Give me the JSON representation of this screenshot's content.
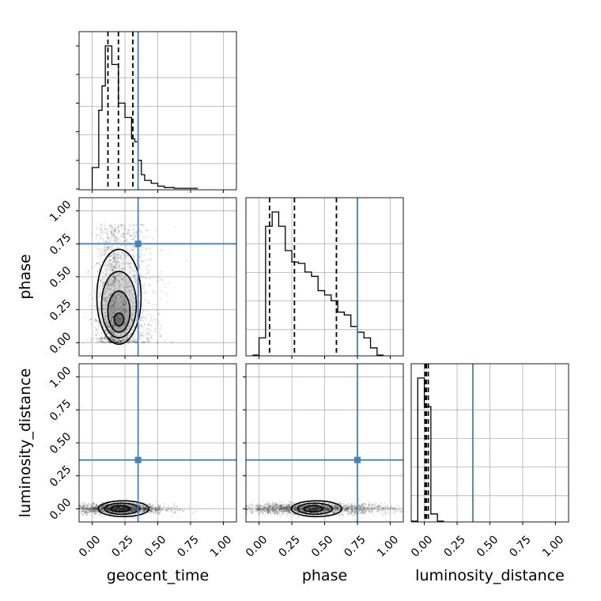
{
  "chart_data": {
    "type": "corner",
    "parameters": [
      "geocent_time",
      "phase",
      "luminosity_distance"
    ],
    "axis_labels": {
      "x": [
        "geocent_time",
        "phase",
        "luminosity_distance"
      ],
      "y": [
        "phase",
        "luminosity_distance"
      ]
    },
    "ticks": [
      0.0,
      0.25,
      0.5,
      0.75,
      1.0
    ],
    "tick_labels": [
      "0.00",
      "0.25",
      "0.50",
      "0.75",
      "1.00"
    ],
    "xlim": [
      -0.1,
      1.1
    ],
    "ylim": [
      -0.1,
      1.1
    ],
    "grid": true,
    "truths": {
      "geocent_time": 0.35,
      "phase": 0.75,
      "luminosity_distance": 0.37
    },
    "quantiles": {
      "geocent_time": [
        0.12,
        0.2,
        0.31
      ],
      "phase": [
        0.08,
        0.27,
        0.59
      ],
      "luminosity_distance": [
        0.005,
        0.015,
        0.03
      ]
    },
    "marginals": {
      "geocent_time": {
        "bin_edges": [
          0.0,
          0.05,
          0.075,
          0.1,
          0.125,
          0.15,
          0.2,
          0.25,
          0.3,
          0.325,
          0.35,
          0.375,
          0.4,
          0.45,
          0.5,
          0.55,
          0.625,
          0.8
        ],
        "counts": [
          0.15,
          0.55,
          0.72,
          1.0,
          1.0,
          0.87,
          0.6,
          0.5,
          0.35,
          0.33,
          0.2,
          0.1,
          0.06,
          0.04,
          0.02,
          0.01,
          0.005
        ]
      },
      "phase": {
        "bin_edges": [
          -0.05,
          0.0,
          0.05,
          0.1,
          0.15,
          0.2,
          0.25,
          0.3,
          0.35,
          0.4,
          0.45,
          0.5,
          0.55,
          0.6,
          0.65,
          0.7,
          0.75,
          0.8,
          0.85,
          0.9,
          0.95
        ],
        "counts": [
          0.0,
          0.12,
          0.9,
          1.0,
          0.9,
          0.73,
          0.65,
          0.64,
          0.58,
          0.55,
          0.45,
          0.42,
          0.38,
          0.3,
          0.28,
          0.2,
          0.16,
          0.12,
          0.05,
          0.0
        ]
      },
      "luminosity_distance": {
        "bin_edges": [
          -0.1,
          -0.05,
          0.0,
          0.05,
          0.1,
          0.15
        ],
        "counts": [
          0.0,
          1.0,
          0.8,
          0.05,
          0.0
        ]
      }
    },
    "joint_samples": {
      "phase_vs_geocent_time": {
        "x_center": 0.18,
        "y_center": 0.15,
        "x_spread": 0.12,
        "y_range": [
          0.0,
          0.9
        ],
        "n": 1800
      },
      "luminosity_distance_vs_geocent_time": {
        "x_center": 0.2,
        "y_center": 0.0,
        "x_spread": 0.18,
        "y_spread": 0.02,
        "n": 1600
      },
      "luminosity_distance_vs_phase": {
        "x_center": 0.4,
        "y_center": 0.0,
        "x_spread": 0.3,
        "y_spread": 0.02,
        "n": 1800
      }
    },
    "colors": {
      "truth": "#4682b4",
      "hist": "#000000",
      "grid": "#b0b0b0"
    }
  }
}
